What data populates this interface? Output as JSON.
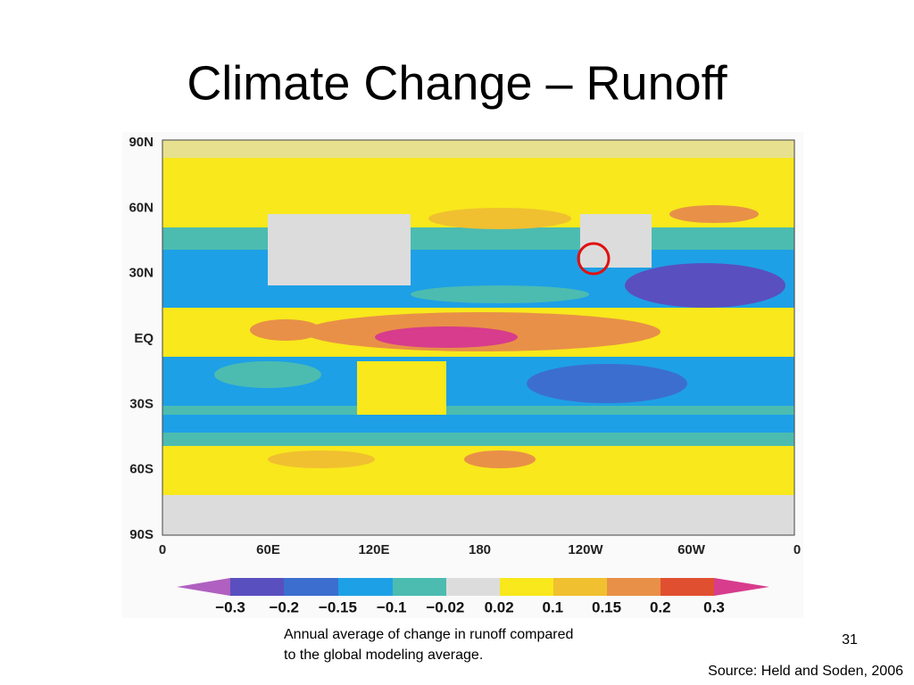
{
  "title": "Climate Change – Runoff",
  "map": {
    "lat_labels": [
      "90N",
      "60N",
      "30N",
      "EQ",
      "30S",
      "60S",
      "90S"
    ],
    "lon_labels": [
      "0",
      "60E",
      "120E",
      "180",
      "120W",
      "60W",
      "0"
    ],
    "colorbar_labels": [
      "−0.3",
      "−0.2",
      "−0.15",
      "−0.1",
      "−0.02",
      "0.02",
      "0.1",
      "0.15",
      "0.2",
      "0.3"
    ]
  },
  "caption": [
    "Annual average of change in runoff compared",
    "to the global modeling average."
  ],
  "page_number": "31",
  "source": "Source: Held and Soden, 2006"
}
